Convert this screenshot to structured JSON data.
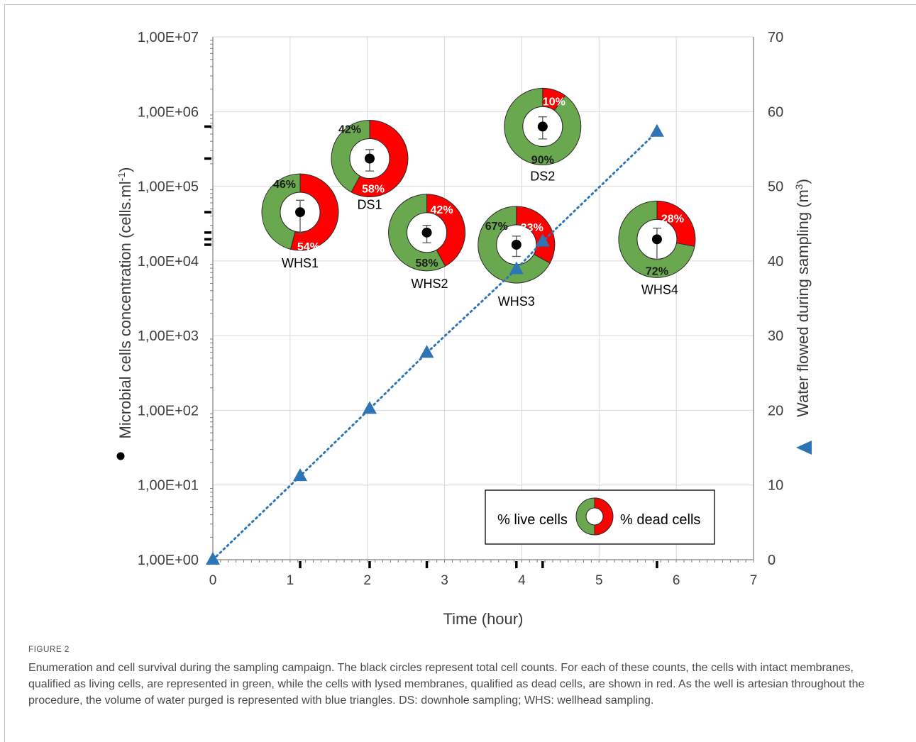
{
  "figure_label": "FIGURE 2",
  "caption": "Enumeration and cell survival during the sampling campaign. The black circles represent total cell counts. For each of these counts, the cells with intact membranes, qualified as living cells, are represented in green, while the cells with lysed membranes, qualified as dead cells, are shown in red. As the well is artesian throughout the procedure, the volume of water purged is represented with blue triangles. DS: downhole sampling; WHS: wellhead sampling.",
  "colors": {
    "live": "#6aa84f",
    "dead": "#ff0000",
    "water": "#2e75b6",
    "grid": "#d9d9d9",
    "axis": "#7f7f7f"
  },
  "chart_data": {
    "type": "scatter",
    "xlabel": "Time (hour)",
    "ylabel_left": "Microbial cells concentration (cells.ml",
    "ylabel_left_sup": "-1",
    "ylabel_left_end": ")",
    "ylabel_right": "Water flowed during sampling (m",
    "ylabel_right_sup": "3",
    "ylabel_right_end": ")",
    "xlim": [
      0,
      7
    ],
    "ylim_left": [
      1,
      10000000
    ],
    "ylim_right": [
      0,
      70
    ],
    "y_left_scale": "log",
    "x_ticks": [
      "0",
      "1",
      "2",
      "3",
      "4",
      "5",
      "6",
      "7"
    ],
    "y_left_ticks": [
      "1,00E+00",
      "1,00E+01",
      "1,00E+02",
      "1,00E+03",
      "1,00E+04",
      "1,00E+05",
      "1,00E+06",
      "1,00E+07"
    ],
    "y_right_ticks": [
      "0",
      "10",
      "20",
      "30",
      "40",
      "50",
      "60",
      "70"
    ],
    "grid": true,
    "water_series": {
      "x": [
        0,
        1.13,
        2.03,
        2.77,
        3.93,
        4.27,
        5.75
      ],
      "y": [
        0,
        11.2,
        20.2,
        27.7,
        38.9,
        42.6,
        57.3
      ]
    },
    "samples": [
      {
        "name": "WHS1",
        "x": 1.13,
        "count": 45000,
        "err_low": 23000,
        "err_high": 65000,
        "live_pct": 46,
        "dead_pct": 54,
        "live_label": "46%",
        "dead_label": "54%"
      },
      {
        "name": "DS1",
        "x": 2.03,
        "count": 235000,
        "err_low": 160000,
        "err_high": 310000,
        "live_pct": 42,
        "dead_pct": 58,
        "live_label": "42%",
        "dead_label": "58%"
      },
      {
        "name": "WHS2",
        "x": 2.77,
        "count": 24000,
        "err_low": 17500,
        "err_high": 30000,
        "live_pct": 58,
        "dead_pct": 42,
        "live_label": "58%",
        "dead_label": "42%"
      },
      {
        "name": "WHS3",
        "x": 3.93,
        "count": 16500,
        "err_low": 11500,
        "err_high": 21500,
        "live_pct": 67,
        "dead_pct": 33,
        "live_label": "67%",
        "dead_label": "33%"
      },
      {
        "name": "DS2",
        "x": 4.27,
        "count": 630000,
        "err_low": 430000,
        "err_high": 850000,
        "live_pct": 90,
        "dead_pct": 10,
        "live_label": "90%",
        "dead_label": "10%"
      },
      {
        "name": "WHS4",
        "x": 5.75,
        "count": 19500,
        "err_low": 10500,
        "err_high": 27500,
        "live_pct": 72,
        "dead_pct": 28,
        "live_label": "72%",
        "dead_label": "28%"
      }
    ],
    "legend": {
      "live": "% live cells",
      "dead": "% dead cells",
      "placement": "bottom-right"
    }
  }
}
